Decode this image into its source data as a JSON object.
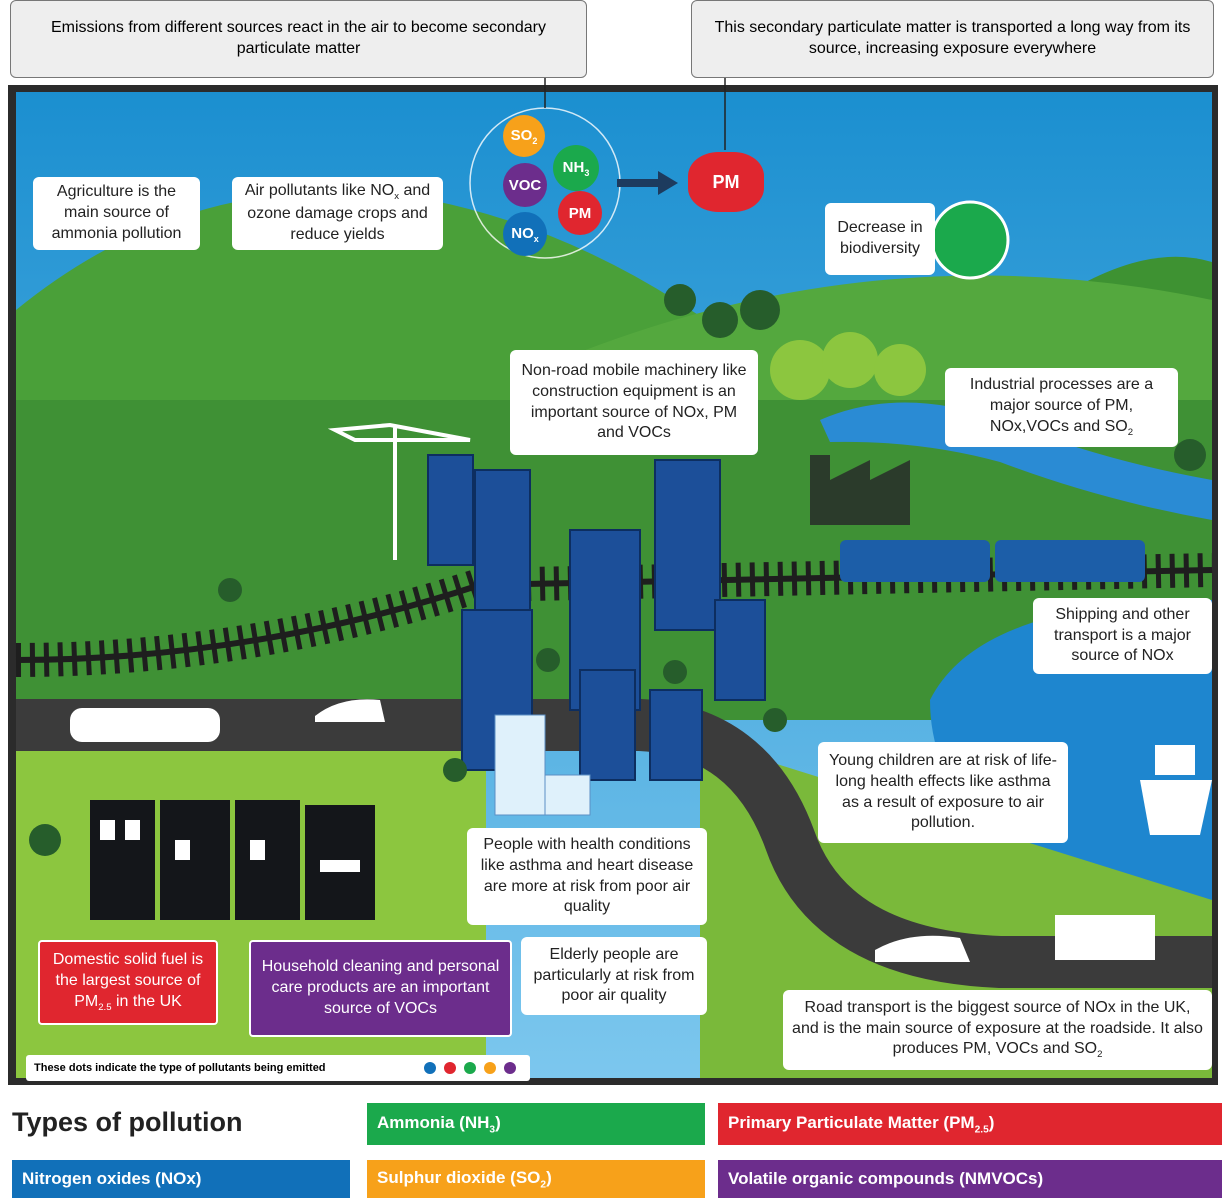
{
  "top_notes": [
    {
      "parts": [
        "Emissions from different sources react in the air to become secondary particulate matter"
      ]
    },
    {
      "parts": [
        "This secondary particulate matter is transported a long way from its source, increasing exposure everywhere"
      ]
    }
  ],
  "molecules": [
    {
      "parts": [
        "SO",
        "2"
      ],
      "color": "#f7a11a"
    },
    {
      "parts": [
        "NH",
        "3"
      ],
      "color": "#1ba94c"
    },
    {
      "parts": [
        "VOC"
      ],
      "color": "#6c2d8c"
    },
    {
      "parts": [
        "PM"
      ],
      "color": "#e0262f"
    },
    {
      "parts": [
        "NO",
        "x"
      ],
      "color": "#1170b9"
    }
  ],
  "result": {
    "parts": [
      "PM"
    ],
    "color": "#e0262f"
  },
  "callouts": [
    {
      "parts": [
        "Agriculture is the main source of ammonia pollution"
      ]
    },
    {
      "parts": [
        "Air pollutants like NO",
        "x",
        " and ozone damage crops and reduce yields"
      ]
    },
    {
      "parts": [
        "Decrease in biodiversity"
      ]
    },
    {
      "parts": [
        "Non-road mobile machinery like construction equipment is an important source of NOx, PM and VOCs"
      ]
    },
    {
      "parts": [
        "Industrial processes are a major source of PM, NOx,VOCs and SO",
        "2"
      ]
    },
    {
      "parts": [
        "Shipping and other transport is a major source of NOx"
      ]
    },
    {
      "parts": [
        "Young children are at risk of life-long health effects like asthma as a result of exposure to air pollution."
      ]
    },
    {
      "parts": [
        "People with health conditions like asthma and heart disease are more at risk from poor air quality"
      ]
    },
    {
      "parts": [
        "Elderly people are particularly at risk from poor air quality"
      ]
    },
    {
      "parts": [
        "Domestic solid fuel is the largest source of PM",
        "2.5",
        " in the UK"
      ],
      "color": "#e0262f"
    },
    {
      "parts": [
        "Household cleaning and personal care products are an important source of VOCs"
      ],
      "color": "#6c2d8c"
    },
    {
      "parts": [
        "Road transport is the biggest source of NOx in the UK, and is the main source of exposure at the roadside. It also produces PM, VOCs and SO",
        "2"
      ]
    }
  ],
  "key_note": "These dots indicate the type of pollutants being emitted",
  "legend": {
    "title": "Types of pollution",
    "items": [
      {
        "parts": [
          "Ammonia (NH",
          "3",
          ")"
        ],
        "color": "#1ba94c"
      },
      {
        "parts": [
          "Primary Particulate Matter (PM",
          "2.5",
          ")"
        ],
        "color": "#e0262f"
      },
      {
        "parts": [
          "Nitrogen oxides (NOx)"
        ],
        "color": "#1170b9"
      },
      {
        "parts": [
          "Sulphur dioxide (SO",
          "2",
          ")"
        ],
        "color": "#f7a11a"
      },
      {
        "parts": [
          "Volatile organic compounds (NMVOCs)"
        ],
        "color": "#6c2d8c"
      }
    ]
  }
}
